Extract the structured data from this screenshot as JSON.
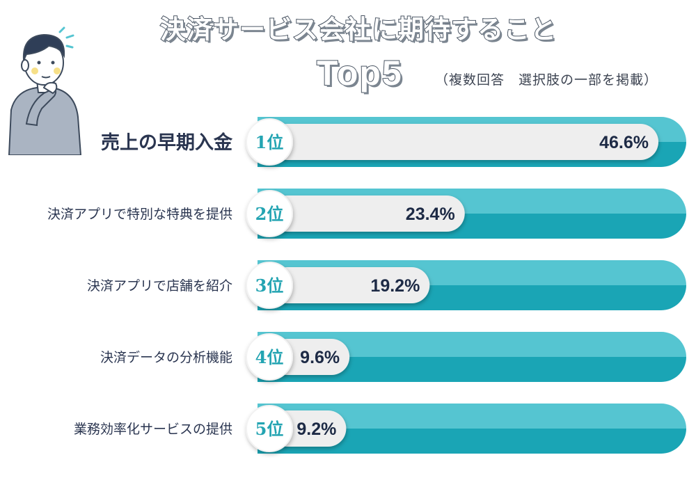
{
  "header": {
    "title": "決済サービス会社に期待すること",
    "subtitle": "Top5",
    "note": "（複数回答　選択肢の一部を掲載）"
  },
  "colors": {
    "track": "#55c5d1",
    "track_dark": "#1aa5b5",
    "bar": "#eeeeee",
    "rank_text": "#23a4b2",
    "label_text": "#2a3550",
    "value_text": "#1d2a45"
  },
  "chart_data": {
    "type": "bar",
    "orientation": "horizontal",
    "title": "決済サービス会社に期待すること Top5",
    "xlim": [
      0,
      46.6
    ],
    "unit": "%",
    "categories": [
      "売上の早期入金",
      "決済アプリで特別な特典を提供",
      "決済アプリで店舗を紹介",
      "決済データの分析機能",
      "業務効率化サービスの提供"
    ],
    "ranks": [
      "1位",
      "2位",
      "3位",
      "4位",
      "5位"
    ],
    "values": [
      46.6,
      23.4,
      19.2,
      9.6,
      9.2
    ],
    "value_labels": [
      "46.6%",
      "23.4%",
      "19.2%",
      "9.6%",
      "9.2%"
    ]
  }
}
